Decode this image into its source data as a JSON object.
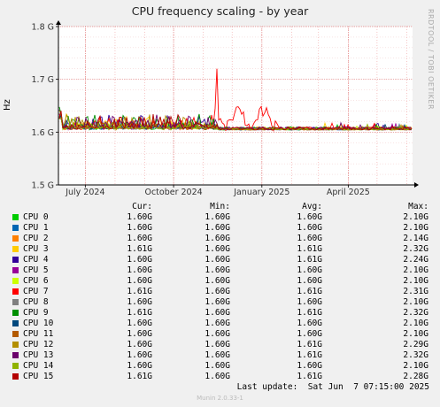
{
  "chart_data": {
    "type": "line",
    "title": "CPU frequency scaling - by year",
    "ylabel": "Hz",
    "ylim": [
      1.5,
      1.8
    ],
    "y_ticks": [
      "1.5 G",
      "1.6 G",
      "1.7 G",
      "1.8 G"
    ],
    "y_tick_values": [
      1.5,
      1.6,
      1.7,
      1.8
    ],
    "x_range": [
      "2024-06-03",
      "2025-06-07"
    ],
    "x_ticks": [
      {
        "label": "July 2024",
        "date": "2024-07-01"
      },
      {
        "label": "October 2024",
        "date": "2024-10-01"
      },
      {
        "label": "January 2025",
        "date": "2025-01-01"
      },
      {
        "label": "April 2025",
        "date": "2025-04-01"
      }
    ],
    "grid": true,
    "watermark": "RRDTOOL / TOBI OETIKER",
    "series": [
      {
        "name": "CPU 0",
        "color": "#00cc00",
        "cur": "1.60G",
        "min": "1.60G",
        "avg": "1.60G",
        "max": "2.10G"
      },
      {
        "name": "CPU 1",
        "color": "#0066b3",
        "cur": "1.60G",
        "min": "1.60G",
        "avg": "1.60G",
        "max": "2.10G"
      },
      {
        "name": "CPU 2",
        "color": "#ff8000",
        "cur": "1.60G",
        "min": "1.60G",
        "avg": "1.60G",
        "max": "2.14G"
      },
      {
        "name": "CPU 3",
        "color": "#ffcc00",
        "cur": "1.61G",
        "min": "1.60G",
        "avg": "1.61G",
        "max": "2.32G"
      },
      {
        "name": "CPU 4",
        "color": "#330099",
        "cur": "1.60G",
        "min": "1.60G",
        "avg": "1.61G",
        "max": "2.24G"
      },
      {
        "name": "CPU 5",
        "color": "#990099",
        "cur": "1.60G",
        "min": "1.60G",
        "avg": "1.60G",
        "max": "2.10G"
      },
      {
        "name": "CPU 6",
        "color": "#ccff00",
        "cur": "1.60G",
        "min": "1.60G",
        "avg": "1.60G",
        "max": "2.10G"
      },
      {
        "name": "CPU 7",
        "color": "#ff0000",
        "cur": "1.61G",
        "min": "1.60G",
        "avg": "1.61G",
        "max": "2.31G"
      },
      {
        "name": "CPU 8",
        "color": "#808080",
        "cur": "1.60G",
        "min": "1.60G",
        "avg": "1.60G",
        "max": "2.10G"
      },
      {
        "name": "CPU 9",
        "color": "#008f00",
        "cur": "1.61G",
        "min": "1.60G",
        "avg": "1.61G",
        "max": "2.32G"
      },
      {
        "name": "CPU 10",
        "color": "#00487d",
        "cur": "1.60G",
        "min": "1.60G",
        "avg": "1.60G",
        "max": "2.10G"
      },
      {
        "name": "CPU 11",
        "color": "#b35a00",
        "cur": "1.60G",
        "min": "1.60G",
        "avg": "1.60G",
        "max": "2.10G"
      },
      {
        "name": "CPU 12",
        "color": "#b38f00",
        "cur": "1.60G",
        "min": "1.60G",
        "avg": "1.61G",
        "max": "2.29G"
      },
      {
        "name": "CPU 13",
        "color": "#6b006b",
        "cur": "1.60G",
        "min": "1.60G",
        "avg": "1.61G",
        "max": "2.32G"
      },
      {
        "name": "CPU 14",
        "color": "#8fb300",
        "cur": "1.60G",
        "min": "1.60G",
        "avg": "1.60G",
        "max": "2.10G"
      },
      {
        "name": "CPU 15",
        "color": "#b30000",
        "cur": "1.61G",
        "min": "1.60G",
        "avg": "1.61G",
        "max": "2.28G"
      }
    ]
  },
  "legend_headers": {
    "cur": "Cur:",
    "min": "Min:",
    "avg": "Avg:",
    "max": "Max:"
  },
  "footer": {
    "last_update": "Last update:  Sat Jun  7 07:15:00 2025",
    "munin": "Munin 2.0.33-1"
  }
}
